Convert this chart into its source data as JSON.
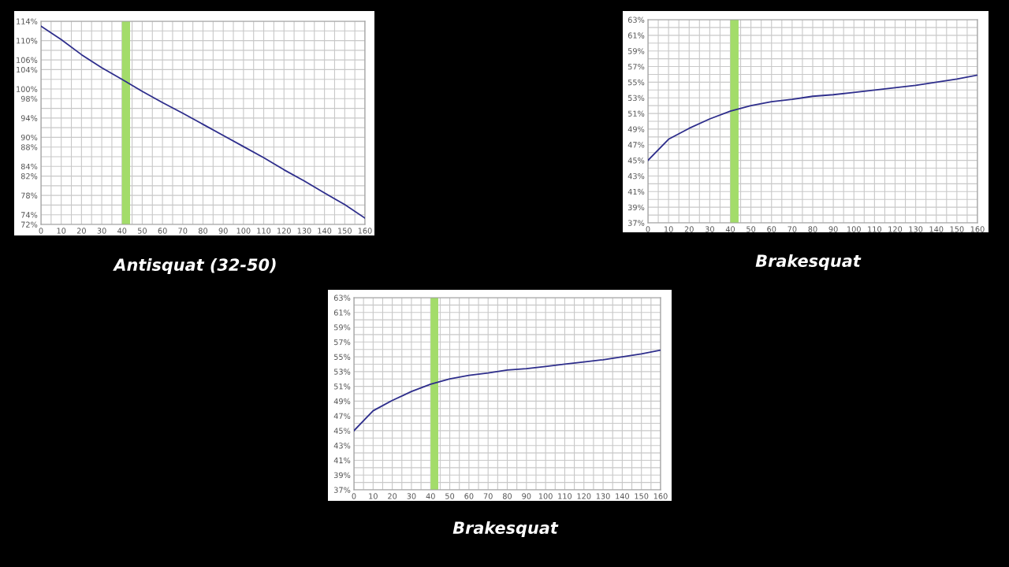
{
  "chart_data": [
    {
      "type": "line",
      "title": "Antisquat (32-50)",
      "x": [
        0,
        10,
        20,
        30,
        40,
        50,
        60,
        70,
        80,
        90,
        100,
        110,
        120,
        130,
        140,
        150,
        160
      ],
      "series": [
        {
          "color": "#2e2e8c",
          "values": [
            113,
            110.2,
            107.1,
            104.4,
            102,
            99.5,
            97.2,
            95,
            92.7,
            90.4,
            88.1,
            85.8,
            83.3,
            81,
            78.5,
            76.1,
            73.3
          ]
        }
      ],
      "xlim": [
        0,
        160
      ],
      "xticks": [
        0,
        {
          "value": 5,
          "label": null
        },
        10,
        {
          "value": 15,
          "label": null
        },
        20,
        {
          "value": 25,
          "label": null
        },
        30,
        {
          "value": 35,
          "label": null
        },
        40,
        {
          "value": 45,
          "label": null
        },
        50,
        {
          "value": 55,
          "label": null
        },
        60,
        {
          "value": 65,
          "label": null
        },
        70,
        {
          "value": 75,
          "label": null
        },
        80,
        {
          "value": 85,
          "label": null
        },
        90,
        {
          "value": 95,
          "label": null
        },
        100,
        {
          "value": 105,
          "label": null
        },
        110,
        {
          "value": 115,
          "label": null
        },
        120,
        {
          "value": 125,
          "label": null
        },
        130,
        {
          "value": 135,
          "label": null
        },
        140,
        {
          "value": 145,
          "label": null
        },
        150,
        {
          "value": 155,
          "label": null
        },
        160
      ],
      "ylim": [
        72,
        114
      ],
      "yticks": [
        {
          "value": 72,
          "label": "72%"
        },
        {
          "value": 74,
          "label": "74%"
        },
        {
          "value": 76,
          "label": null
        },
        {
          "value": 78,
          "label": "78%"
        },
        {
          "value": 80,
          "label": null
        },
        {
          "value": 82,
          "label": "82%"
        },
        {
          "value": 84,
          "label": "84%"
        },
        {
          "value": 86,
          "label": null
        },
        {
          "value": 88,
          "label": "88%"
        },
        {
          "value": 90,
          "label": "90%"
        },
        {
          "value": 92,
          "label": null
        },
        {
          "value": 94,
          "label": "94%"
        },
        {
          "value": 96,
          "label": null
        },
        {
          "value": 98,
          "label": "98%"
        },
        {
          "value": 100,
          "label": "100%"
        },
        {
          "value": 102,
          "label": null
        },
        {
          "value": 104,
          "label": "104%"
        },
        {
          "value": 106,
          "label": "106%"
        },
        {
          "value": 108,
          "label": null
        },
        {
          "value": 110,
          "label": "110%"
        },
        {
          "value": 112,
          "label": null
        },
        {
          "value": 114,
          "label": "114%"
        }
      ],
      "bands": [
        {
          "axis": "x",
          "from": 40,
          "to": 44,
          "color": "#a3dc6a"
        }
      ],
      "grid": true
    },
    {
      "type": "line",
      "title": "Brakesquat",
      "x": [
        0,
        10,
        20,
        30,
        40,
        50,
        60,
        70,
        80,
        90,
        100,
        110,
        120,
        130,
        140,
        150,
        160
      ],
      "series": [
        {
          "color": "#2e2e8c",
          "values": [
            45,
            47.7,
            49.1,
            50.3,
            51.3,
            52,
            52.5,
            52.8,
            53.2,
            53.4,
            53.7,
            54,
            54.3,
            54.6,
            55,
            55.4,
            55.9
          ]
        }
      ],
      "xlim": [
        0,
        160
      ],
      "xticks": [
        0,
        {
          "value": 5,
          "label": null
        },
        10,
        {
          "value": 15,
          "label": null
        },
        20,
        {
          "value": 25,
          "label": null
        },
        30,
        {
          "value": 35,
          "label": null
        },
        40,
        {
          "value": 45,
          "label": null
        },
        50,
        {
          "value": 55,
          "label": null
        },
        60,
        {
          "value": 65,
          "label": null
        },
        70,
        {
          "value": 75,
          "label": null
        },
        80,
        {
          "value": 85,
          "label": null
        },
        90,
        {
          "value": 95,
          "label": null
        },
        100,
        {
          "value": 105,
          "label": null
        },
        110,
        {
          "value": 115,
          "label": null
        },
        120,
        {
          "value": 125,
          "label": null
        },
        130,
        {
          "value": 135,
          "label": null
        },
        140,
        {
          "value": 145,
          "label": null
        },
        150,
        {
          "value": 155,
          "label": null
        },
        160
      ],
      "ylim": [
        37,
        63
      ],
      "yticks": [
        {
          "value": 37,
          "label": "37%"
        },
        {
          "value": 38,
          "label": null
        },
        {
          "value": 39,
          "label": "39%"
        },
        {
          "value": 40,
          "label": null
        },
        {
          "value": 41,
          "label": "41%"
        },
        {
          "value": 42,
          "label": null
        },
        {
          "value": 43,
          "label": "43%"
        },
        {
          "value": 44,
          "label": null
        },
        {
          "value": 45,
          "label": "45%"
        },
        {
          "value": 46,
          "label": null
        },
        {
          "value": 47,
          "label": "47%"
        },
        {
          "value": 48,
          "label": null
        },
        {
          "value": 49,
          "label": "49%"
        },
        {
          "value": 50,
          "label": null
        },
        {
          "value": 51,
          "label": "51%"
        },
        {
          "value": 52,
          "label": null
        },
        {
          "value": 53,
          "label": "53%"
        },
        {
          "value": 54,
          "label": null
        },
        {
          "value": 55,
          "label": "55%"
        },
        {
          "value": 56,
          "label": null
        },
        {
          "value": 57,
          "label": "57%"
        },
        {
          "value": 58,
          "label": null
        },
        {
          "value": 59,
          "label": "59%"
        },
        {
          "value": 60,
          "label": null
        },
        {
          "value": 61,
          "label": "61%"
        },
        {
          "value": 62,
          "label": null
        },
        {
          "value": 63,
          "label": "63%"
        }
      ],
      "bands": [
        {
          "axis": "x",
          "from": 40,
          "to": 44,
          "color": "#a3dc6a"
        }
      ],
      "grid": true
    },
    {
      "type": "line",
      "title": "Brakesquat",
      "x": [
        0,
        10,
        20,
        30,
        40,
        50,
        60,
        70,
        80,
        90,
        100,
        110,
        120,
        130,
        140,
        150,
        160
      ],
      "series": [
        {
          "color": "#2e2e8c",
          "values": [
            45,
            47.7,
            49.1,
            50.3,
            51.3,
            52,
            52.5,
            52.8,
            53.2,
            53.4,
            53.7,
            54,
            54.3,
            54.6,
            55,
            55.4,
            55.9
          ]
        }
      ],
      "xlim": [
        0,
        160
      ],
      "xticks": [
        0,
        {
          "value": 5,
          "label": null
        },
        10,
        {
          "value": 15,
          "label": null
        },
        20,
        {
          "value": 25,
          "label": null
        },
        30,
        {
          "value": 35,
          "label": null
        },
        40,
        {
          "value": 45,
          "label": null
        },
        50,
        {
          "value": 55,
          "label": null
        },
        60,
        {
          "value": 65,
          "label": null
        },
        70,
        {
          "value": 75,
          "label": null
        },
        80,
        {
          "value": 85,
          "label": null
        },
        90,
        {
          "value": 95,
          "label": null
        },
        100,
        {
          "value": 105,
          "label": null
        },
        110,
        {
          "value": 115,
          "label": null
        },
        120,
        {
          "value": 125,
          "label": null
        },
        130,
        {
          "value": 135,
          "label": null
        },
        140,
        {
          "value": 145,
          "label": null
        },
        150,
        {
          "value": 155,
          "label": null
        },
        160
      ],
      "ylim": [
        37,
        63
      ],
      "yticks": [
        {
          "value": 37,
          "label": "37%"
        },
        {
          "value": 38,
          "label": null
        },
        {
          "value": 39,
          "label": "39%"
        },
        {
          "value": 40,
          "label": null
        },
        {
          "value": 41,
          "label": "41%"
        },
        {
          "value": 42,
          "label": null
        },
        {
          "value": 43,
          "label": "43%"
        },
        {
          "value": 44,
          "label": null
        },
        {
          "value": 45,
          "label": "45%"
        },
        {
          "value": 46,
          "label": null
        },
        {
          "value": 47,
          "label": "47%"
        },
        {
          "value": 48,
          "label": null
        },
        {
          "value": 49,
          "label": "49%"
        },
        {
          "value": 50,
          "label": null
        },
        {
          "value": 51,
          "label": "51%"
        },
        {
          "value": 52,
          "label": null
        },
        {
          "value": 53,
          "label": "53%"
        },
        {
          "value": 54,
          "label": null
        },
        {
          "value": 55,
          "label": "55%"
        },
        {
          "value": 56,
          "label": null
        },
        {
          "value": 57,
          "label": "57%"
        },
        {
          "value": 58,
          "label": null
        },
        {
          "value": 59,
          "label": "59%"
        },
        {
          "value": 60,
          "label": null
        },
        {
          "value": 61,
          "label": "61%"
        },
        {
          "value": 62,
          "label": null
        },
        {
          "value": 63,
          "label": "63%"
        }
      ],
      "bands": [
        {
          "axis": "x",
          "from": 40,
          "to": 44,
          "color": "#a3dc6a"
        }
      ],
      "grid": true
    }
  ]
}
